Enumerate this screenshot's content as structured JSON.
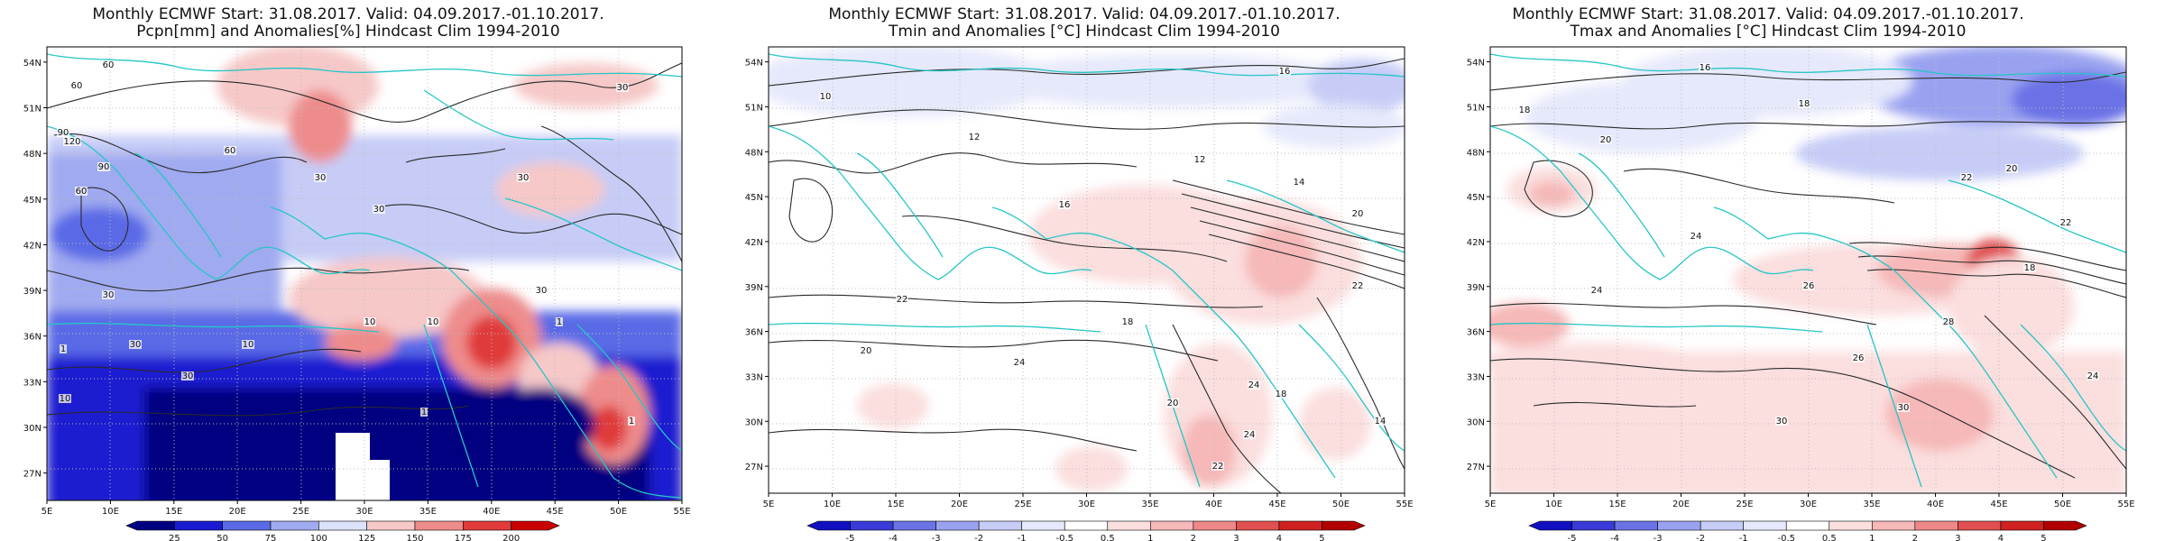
{
  "panels": [
    {
      "title1": "Monthly ECMWF Start: 31.08.2017. Valid: 04.09.2017.-01.10.2017.",
      "title2": "Pcpn[mm] and Anomalies[%] Hindcast Clim 1994-2010",
      "colorbar": [
        "25",
        "50",
        "75",
        "100",
        "125",
        "150",
        "175",
        "200"
      ],
      "colors": [
        "#000080",
        "#1a1ad0",
        "#5a6ae6",
        "#a0aaf0",
        "#dde2fb",
        "#f6c8c8",
        "#ee8c8c",
        "#e03a3a",
        "#c80000"
      ],
      "contour_labels": [
        "60",
        "60",
        "30",
        "90",
        "120",
        "60",
        "30",
        "30",
        "30",
        "30",
        "10",
        "1",
        "10",
        "10",
        "1",
        "30",
        "30",
        "10",
        "1",
        "1",
        "90",
        "60",
        "30"
      ]
    },
    {
      "title1": "Monthly ECMWF Start: 31.08.2017. Valid: 04.09.2017.-01.10.2017.",
      "title2": "Tmin and Anomalies [°C] Hindcast Clim 1994-2010",
      "colorbar": [
        "-5",
        "-4",
        "-3",
        "-2",
        "-1",
        "-0.5",
        "0.5",
        "1",
        "2",
        "3",
        "4",
        "5"
      ],
      "colors": [
        "#1010c0",
        "#3a3ad8",
        "#6a72e6",
        "#9aa2f0",
        "#c6ccf6",
        "#e6e9fb",
        "#ffffff",
        "#fbdede",
        "#f6b8b8",
        "#ee8888",
        "#e05050",
        "#d02020",
        "#b00000"
      ],
      "contour_labels": [
        "16",
        "10",
        "12",
        "12",
        "14",
        "20",
        "22",
        "24",
        "18",
        "14",
        "18",
        "22",
        "24",
        "20",
        "24",
        "20",
        "22",
        "16"
      ]
    },
    {
      "title1": "Monthly ECMWF Start: 31.08.2017. Valid: 04.09.2017.-01.10.2017.",
      "title2": "Tmax and Anomalies [°C] Hindcast Clim 1994-2010",
      "colorbar": [
        "-5",
        "-4",
        "-3",
        "-2",
        "-1",
        "-0.5",
        "0.5",
        "1",
        "2",
        "3",
        "4",
        "5"
      ],
      "colors": [
        "#1010c0",
        "#3a3ad8",
        "#6a72e6",
        "#9aa2f0",
        "#c6ccf6",
        "#e6e9fb",
        "#ffffff",
        "#fbdede",
        "#f6b8b8",
        "#ee8888",
        "#e05050",
        "#d02020",
        "#b00000"
      ],
      "contour_labels": [
        "16",
        "18",
        "18",
        "20",
        "22",
        "24",
        "26",
        "28",
        "30",
        "26",
        "30",
        "20",
        "24",
        "18",
        "22",
        "24"
      ]
    }
  ],
  "lon_ticks": [
    "5E",
    "10E",
    "15E",
    "20E",
    "25E",
    "30E",
    "35E",
    "40E",
    "45E",
    "50E",
    "55E"
  ],
  "lat_ticks": [
    "54N",
    "51N",
    "48N",
    "45N",
    "42N",
    "39N",
    "36N",
    "33N",
    "30N",
    "27N"
  ],
  "map_extent": {
    "lon": [
      5,
      55
    ],
    "lat": [
      25.2,
      55
    ]
  }
}
